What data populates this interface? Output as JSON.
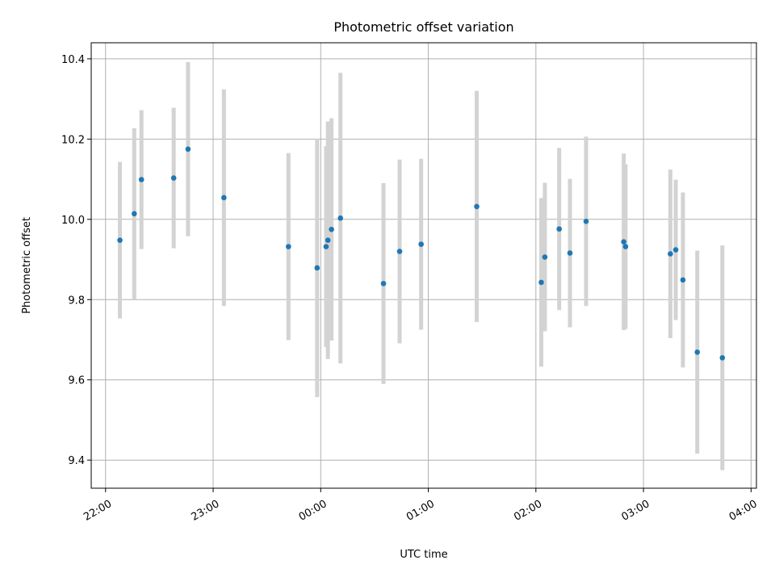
{
  "chart_data": {
    "type": "scatter",
    "title": "Photometric offset variation",
    "xlabel": "UTC time",
    "ylabel": "Photometric offset",
    "xlim": [
      "21:52",
      "04:03"
    ],
    "ylim": [
      9.33,
      10.44
    ],
    "grid": true,
    "x_ticks": [
      "22:00",
      "23:00",
      "00:00",
      "01:00",
      "02:00",
      "03:00",
      "04:00"
    ],
    "y_ticks": [
      "9.4",
      "9.6",
      "9.8",
      "10.0",
      "10.2",
      "10.4"
    ],
    "colors": {
      "point": "#1f77b4",
      "errorbar": "#d3d3d3"
    },
    "points": [
      {
        "time": "22:08",
        "y": 9.948,
        "err": 0.195
      },
      {
        "time": "22:16",
        "y": 10.014,
        "err": 0.213
      },
      {
        "time": "22:20",
        "y": 10.099,
        "err": 0.173
      },
      {
        "time": "22:38",
        "y": 10.103,
        "err": 0.175
      },
      {
        "time": "22:46",
        "y": 10.175,
        "err": 0.217
      },
      {
        "time": "23:06",
        "y": 10.054,
        "err": 0.27
      },
      {
        "time": "23:42",
        "y": 9.932,
        "err": 0.233
      },
      {
        "time": "23:58",
        "y": 9.879,
        "err": 0.322
      },
      {
        "time": "00:03",
        "y": 9.932,
        "err": 0.25
      },
      {
        "time": "00:04",
        "y": 9.948,
        "err": 0.296
      },
      {
        "time": "00:06",
        "y": 9.975,
        "err": 0.277
      },
      {
        "time": "00:11",
        "y": 10.003,
        "err": 0.362
      },
      {
        "time": "00:35",
        "y": 9.84,
        "err": 0.25
      },
      {
        "time": "00:44",
        "y": 9.92,
        "err": 0.229
      },
      {
        "time": "00:56",
        "y": 9.938,
        "err": 0.213
      },
      {
        "time": "01:27",
        "y": 10.032,
        "err": 0.288
      },
      {
        "time": "02:03",
        "y": 9.843,
        "err": 0.21
      },
      {
        "time": "02:05",
        "y": 9.906,
        "err": 0.185
      },
      {
        "time": "02:13",
        "y": 9.976,
        "err": 0.202
      },
      {
        "time": "02:19",
        "y": 9.916,
        "err": 0.185
      },
      {
        "time": "02:28",
        "y": 9.995,
        "err": 0.211
      },
      {
        "time": "02:49",
        "y": 9.944,
        "err": 0.22
      },
      {
        "time": "02:50",
        "y": 9.932,
        "err": 0.205
      },
      {
        "time": "03:15",
        "y": 9.914,
        "err": 0.21
      },
      {
        "time": "03:18",
        "y": 9.924,
        "err": 0.175
      },
      {
        "time": "03:22",
        "y": 9.849,
        "err": 0.218
      },
      {
        "time": "03:30",
        "y": 9.669,
        "err": 0.253
      },
      {
        "time": "03:44",
        "y": 9.655,
        "err": 0.28
      }
    ]
  }
}
